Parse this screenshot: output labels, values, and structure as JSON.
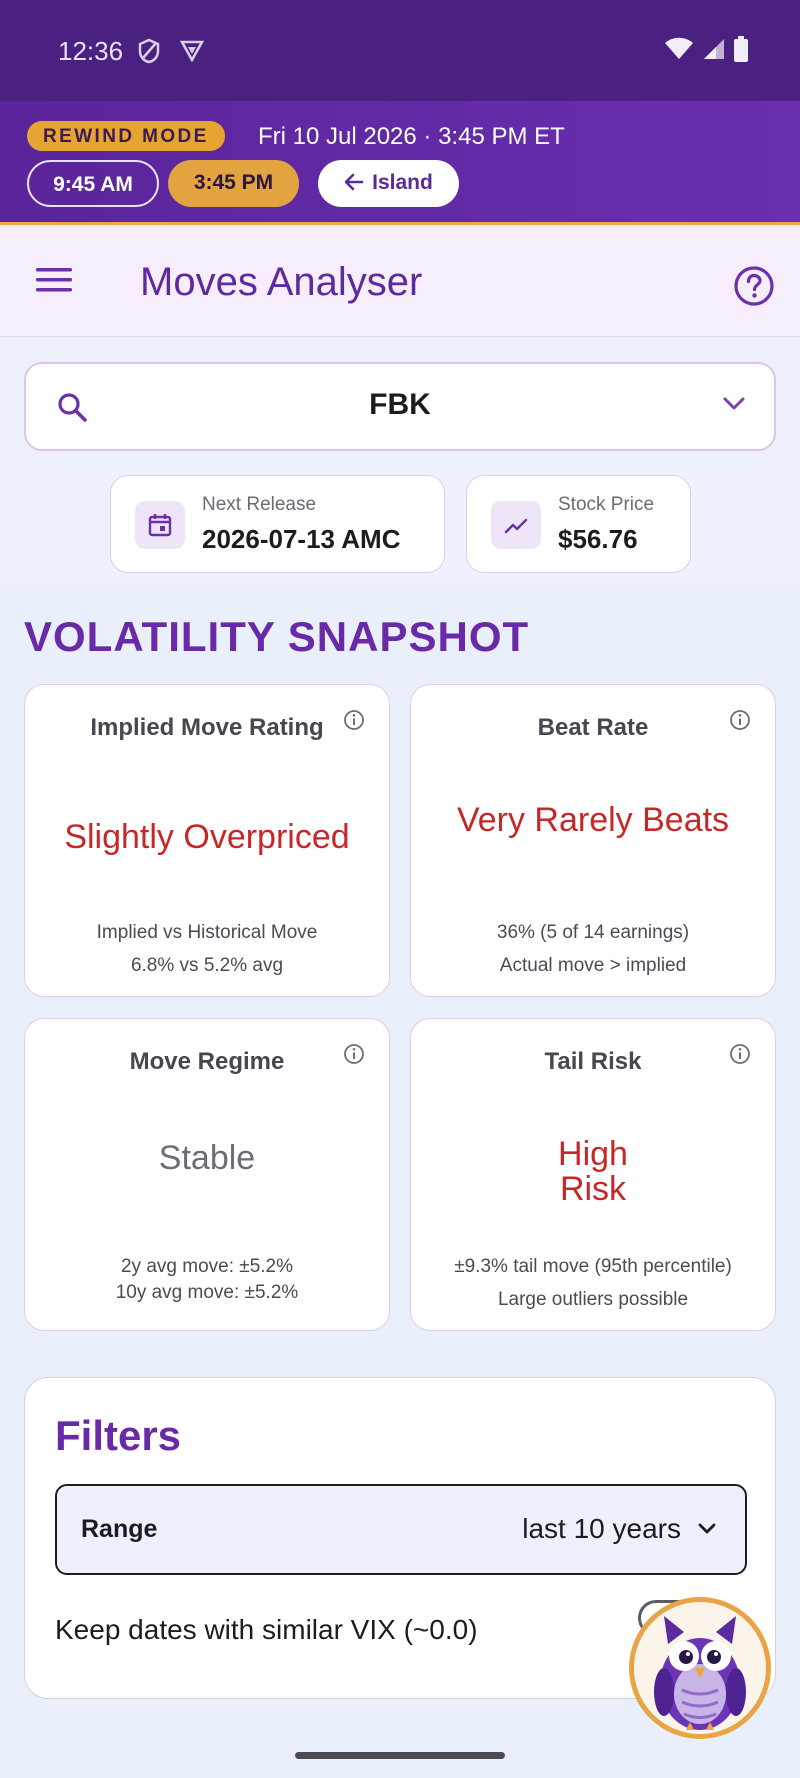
{
  "status_bar": {
    "time": "12:36",
    "icons": [
      "shield-icon",
      "vpn-icon",
      "wifi-icon",
      "signal-icon",
      "battery-icon"
    ]
  },
  "rewind": {
    "badge": "REWIND MODE",
    "datetime": "Fri 10 Jul 2026 · 3:45 PM ET",
    "chip_am": "9:45 AM",
    "chip_pm": "3:45 PM",
    "island": "Island"
  },
  "appbar": {
    "title": "Moves Analyser"
  },
  "search": {
    "value": "FBK"
  },
  "info": {
    "release_label": "Next Release",
    "release_value": "2026-07-13 AMC",
    "price_label": "Stock Price",
    "price_value": "$56.76"
  },
  "snapshot": {
    "title": "VOLATILITY SNAPSHOT",
    "cards": [
      {
        "title": "Implied Move Rating",
        "value": "Slightly Overpriced",
        "sub1": "Implied vs Historical Move",
        "sub2": "6.8% vs 5.2% avg",
        "tone": "red"
      },
      {
        "title": "Beat Rate",
        "value": "Very Rarely Beats",
        "sub1": "36% (5 of 14 earnings)",
        "sub2": "Actual move > implied",
        "tone": "red"
      },
      {
        "title": "Move Regime",
        "value": "Stable",
        "sub1": "2y avg move: ±5.2%",
        "sub2": "10y avg move: ±5.2%",
        "tone": "grey"
      },
      {
        "title": "Tail Risk",
        "value": "High Risk",
        "sub1": "±9.3% tail move (95th percentile)",
        "sub2": "Large outliers possible",
        "tone": "red"
      }
    ]
  },
  "filters": {
    "title": "Filters",
    "range_label": "Range",
    "range_value": "last 10 years",
    "vix_label": "Keep dates with similar VIX (~0.0)"
  },
  "colors": {
    "brand_purple": "#6a2aa8",
    "rewind_gold": "#e6a531",
    "status_red": "#c62828"
  }
}
